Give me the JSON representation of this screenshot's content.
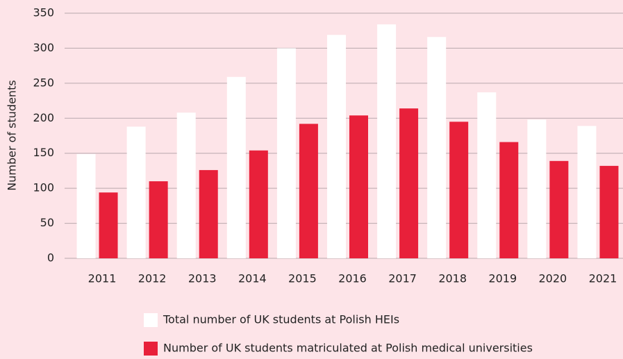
{
  "chart_data": {
    "type": "bar",
    "y_label": "Number of students",
    "categories": [
      "2011",
      "2012",
      "2013",
      "2014",
      "2015",
      "2016",
      "2017",
      "2018",
      "2019",
      "2020",
      "2021"
    ],
    "series": [
      {
        "name": "Total number of UK students at Polish HEIs",
        "color": "#ffffff",
        "values": [
          149,
          188,
          208,
          259,
          300,
          319,
          334,
          316,
          237,
          198,
          189
        ]
      },
      {
        "name": "Number of UK students matriculated at Polish medical universities",
        "color": "#e8203a",
        "values": [
          94,
          110,
          126,
          154,
          192,
          204,
          214,
          195,
          166,
          139,
          132
        ]
      }
    ],
    "ylim": [
      0,
      350
    ],
    "yticks": [
      0,
      50,
      100,
      150,
      200,
      250,
      300,
      350
    ],
    "grid": true
  }
}
